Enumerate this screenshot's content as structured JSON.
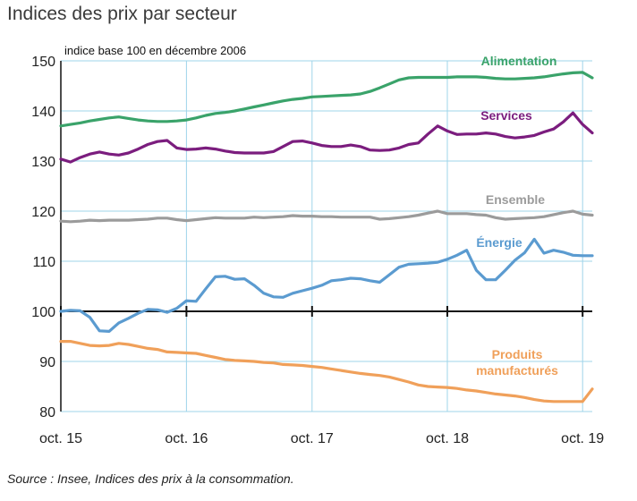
{
  "title": "Indices des prix par secteur",
  "source": "Source : Insee, Indices des prix à la consommation.",
  "chart_data": {
    "type": "line",
    "ylabel": "indice base 100 en décembre 2006",
    "ylim": [
      80,
      150
    ],
    "yticks": [
      80,
      90,
      100,
      110,
      120,
      130,
      140,
      150
    ],
    "xlabels": [
      "oct. 15",
      "oct. 16",
      "oct. 17",
      "oct. 18",
      "oct. 19"
    ],
    "grid": true,
    "series": [
      {
        "name": "Alimentation",
        "color": "#3aa36a",
        "values": [
          137.0,
          137.3,
          137.6,
          138.0,
          138.3,
          138.6,
          138.8,
          138.5,
          138.2,
          138.0,
          137.9,
          137.9,
          138.0,
          138.2,
          138.6,
          139.1,
          139.5,
          139.7,
          140.0,
          140.4,
          140.8,
          141.2,
          141.6,
          142.0,
          142.3,
          142.5,
          142.8,
          142.9,
          143.0,
          143.1,
          143.2,
          143.4,
          143.9,
          144.6,
          145.4,
          146.2,
          146.6,
          146.7,
          146.7,
          146.7,
          146.7,
          146.8,
          146.8,
          146.8,
          146.7,
          146.5,
          146.4,
          146.4,
          146.5,
          146.6,
          146.8,
          147.1,
          147.4,
          147.6,
          147.7,
          146.6
        ]
      },
      {
        "name": "Services",
        "color": "#7b1d7e",
        "values": [
          130.4,
          129.8,
          130.7,
          131.4,
          131.8,
          131.4,
          131.2,
          131.6,
          132.4,
          133.3,
          133.9,
          134.1,
          132.6,
          132.3,
          132.4,
          132.6,
          132.4,
          132.0,
          131.7,
          131.6,
          131.6,
          131.6,
          131.9,
          132.9,
          133.9,
          134.0,
          133.6,
          133.1,
          132.9,
          132.9,
          133.2,
          132.9,
          132.2,
          132.1,
          132.2,
          132.6,
          133.3,
          133.6,
          135.4,
          137.0,
          136.0,
          135.3,
          135.4,
          135.4,
          135.6,
          135.4,
          134.9,
          134.6,
          134.8,
          135.1,
          135.8,
          136.4,
          137.8,
          139.6,
          137.3,
          135.6
        ]
      },
      {
        "name": "Ensemble",
        "color": "#9b9b9b",
        "values": [
          118.0,
          117.9,
          118.0,
          118.2,
          118.1,
          118.2,
          118.2,
          118.2,
          118.3,
          118.4,
          118.6,
          118.6,
          118.3,
          118.1,
          118.3,
          118.5,
          118.7,
          118.6,
          118.6,
          118.6,
          118.8,
          118.7,
          118.8,
          118.9,
          119.1,
          119.0,
          119.0,
          118.9,
          118.9,
          118.8,
          118.8,
          118.8,
          118.8,
          118.4,
          118.5,
          118.7,
          118.9,
          119.2,
          119.6,
          120.0,
          119.5,
          119.5,
          119.5,
          119.3,
          119.2,
          118.7,
          118.4,
          118.5,
          118.6,
          118.7,
          118.9,
          119.3,
          119.7,
          120.0,
          119.4,
          119.2
        ]
      },
      {
        "name": "Énergie",
        "color": "#5b9bd0",
        "values": [
          100.0,
          100.2,
          100.1,
          98.8,
          96.1,
          96.0,
          97.7,
          98.6,
          99.6,
          100.4,
          100.3,
          99.8,
          100.6,
          102.1,
          102.0,
          104.5,
          106.9,
          107.0,
          106.4,
          106.5,
          105.2,
          103.6,
          102.9,
          102.8,
          103.6,
          104.1,
          104.6,
          105.2,
          106.1,
          106.3,
          106.6,
          106.5,
          106.1,
          105.8,
          107.3,
          108.8,
          109.4,
          109.5,
          109.6,
          109.8,
          110.4,
          111.2,
          112.2,
          108.2,
          106.3,
          106.3,
          108.2,
          110.2,
          111.7,
          114.4,
          111.6,
          112.2,
          111.8,
          111.2,
          111.1,
          111.1
        ]
      },
      {
        "name": "Produits manufacturés",
        "color": "#f0a05a",
        "values": [
          94.0,
          94.0,
          93.6,
          93.2,
          93.1,
          93.2,
          93.6,
          93.4,
          93.0,
          92.6,
          92.4,
          91.9,
          91.8,
          91.7,
          91.6,
          91.2,
          90.8,
          90.4,
          90.2,
          90.1,
          90.0,
          89.8,
          89.7,
          89.4,
          89.3,
          89.2,
          89.0,
          88.8,
          88.5,
          88.2,
          87.9,
          87.6,
          87.4,
          87.2,
          86.9,
          86.4,
          85.9,
          85.3,
          85.0,
          84.9,
          84.8,
          84.6,
          84.3,
          84.1,
          83.8,
          83.5,
          83.3,
          83.1,
          82.8,
          82.4,
          82.1,
          82.0,
          82.0,
          82.0,
          82.0,
          84.5
        ]
      }
    ]
  }
}
